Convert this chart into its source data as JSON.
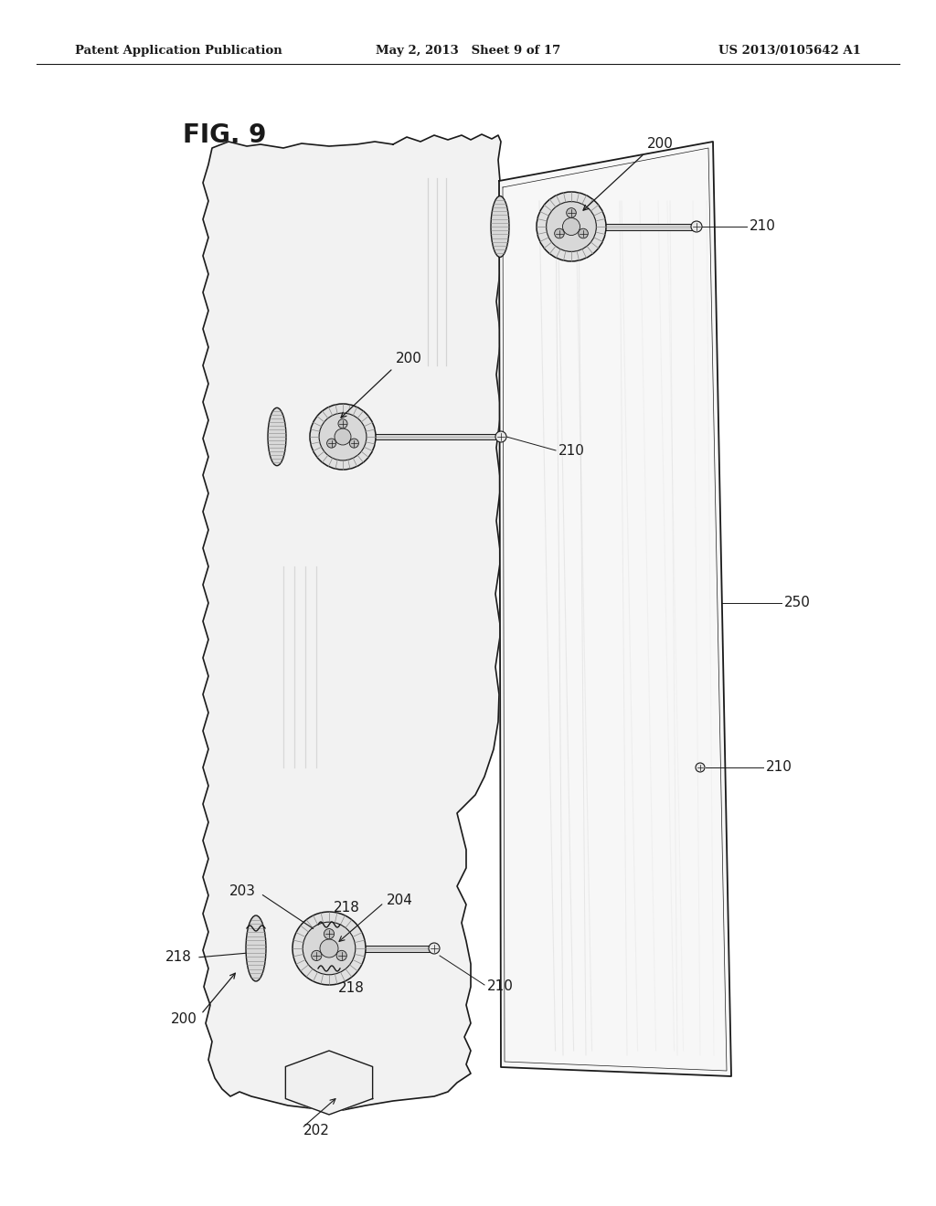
{
  "bg_color": "#ffffff",
  "line_color": "#1a1a1a",
  "light_gray": "#aaaaaa",
  "header_left": "Patent Application Publication",
  "header_center": "May 2, 2013   Sheet 9 of 17",
  "header_right": "US 2013/0105642 A1",
  "fig_label": "FIG. 9",
  "labels": {
    "200_top": "200",
    "210_top": "210",
    "200_mid": "200",
    "210_mid": "210",
    "250": "250",
    "210_lower": "210",
    "203": "203",
    "218_top": "218",
    "204": "204",
    "218_left": "218",
    "210_bot": "210",
    "218_bot": "218",
    "200_bot": "200",
    "202": "202"
  }
}
